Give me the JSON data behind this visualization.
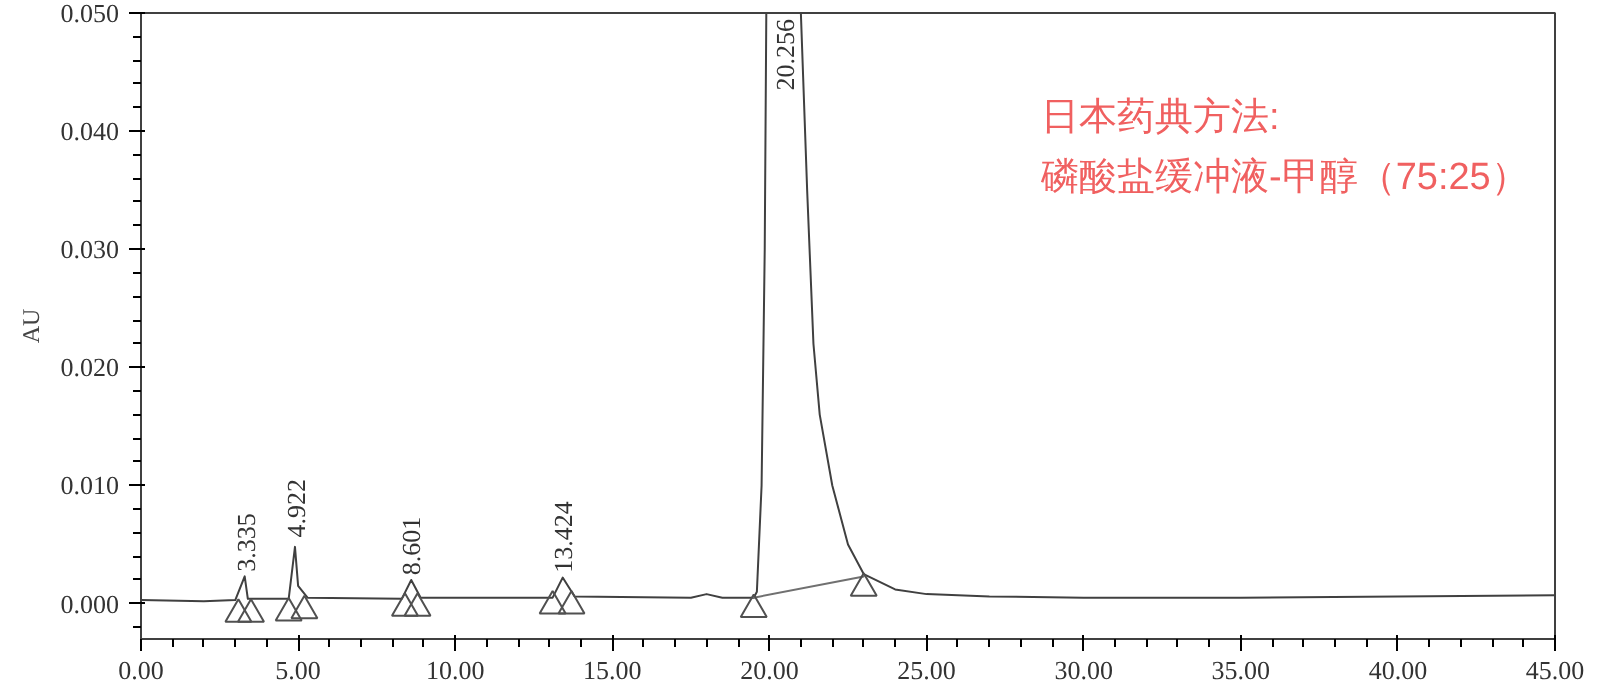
{
  "chart_data": {
    "type": "line",
    "ylabel": "AU",
    "xlim": [
      0,
      45
    ],
    "ylim": [
      -0.003,
      0.05
    ],
    "xticks": [
      {
        "value": 0,
        "label": "0.00"
      },
      {
        "value": 5,
        "label": "5.00"
      },
      {
        "value": 10,
        "label": "10.00"
      },
      {
        "value": 15,
        "label": "15.00"
      },
      {
        "value": 20,
        "label": "20.00"
      },
      {
        "value": 25,
        "label": "25.00"
      },
      {
        "value": 30,
        "label": "30.00"
      },
      {
        "value": 35,
        "label": "35.00"
      },
      {
        "value": 40,
        "label": "40.00"
      },
      {
        "value": 45,
        "label": "45.00"
      }
    ],
    "yticks": [
      {
        "value": 0,
        "label": "0.000"
      },
      {
        "value": 0.01,
        "label": "0.010"
      },
      {
        "value": 0.02,
        "label": "0.020"
      },
      {
        "value": 0.03,
        "label": "0.030"
      },
      {
        "value": 0.04,
        "label": "0.040"
      },
      {
        "value": 0.05,
        "label": "0.050"
      }
    ],
    "grid": false,
    "series": [
      {
        "color": "#404040",
        "x": [
          0,
          2,
          3.0,
          3.3,
          3.4,
          4.7,
          4.9,
          5.0,
          5.3,
          8.3,
          8.6,
          8.9,
          13.1,
          13.42,
          13.8,
          17.5,
          18.0,
          18.5,
          19.5,
          19.6,
          19.75,
          19.85,
          19.9,
          20.5,
          21.0,
          21.2,
          21.4,
          21.6,
          22.0,
          22.5,
          23.0,
          24,
          25,
          27,
          30,
          35,
          40,
          45
        ],
        "values": [
          0.0003,
          0.0002,
          0.0003,
          0.0023,
          0.0004,
          0.0004,
          0.0048,
          0.0015,
          0.0005,
          0.0004,
          0.002,
          0.0005,
          0.0005,
          0.0022,
          0.0006,
          0.0005,
          0.0008,
          0.0005,
          0.0005,
          0.001,
          0.01,
          0.03,
          0.05,
          null,
          0.05,
          0.035,
          0.022,
          0.016,
          0.01,
          0.005,
          0.0025,
          0.0012,
          0.0008,
          0.0006,
          0.0005,
          0.0005,
          0.0006,
          0.0007
        ]
      },
      {
        "color": "#707070",
        "x": [
          19.5,
          23.0
        ],
        "values": [
          0.0005,
          0.0023
        ]
      },
      {
        "type": "scatter",
        "marker": "triangle",
        "color": "#505050",
        "x": [
          3.1,
          3.5,
          4.7,
          5.2,
          8.4,
          8.8,
          13.1,
          13.7,
          19.5,
          23.0
        ],
        "values": [
          -0.0009,
          -0.0009,
          -0.0008,
          -0.0006,
          -0.0004,
          -0.0004,
          -0.0002,
          -0.0002,
          -0.0005,
          0.0013
        ]
      }
    ],
    "annotations": [
      {
        "text": "3.335",
        "x": 3.335,
        "y": 0.0027
      },
      {
        "text": "4.922",
        "x": 4.922,
        "y": 0.0056
      },
      {
        "text": "8.601",
        "x": 8.601,
        "y": 0.0024
      },
      {
        "text": "13.424",
        "x": 13.424,
        "y": 0.0026
      },
      "20.256",
      "日本药典方法:",
      "磷酸盐缓冲液-甲醇（75:25）"
    ]
  }
}
